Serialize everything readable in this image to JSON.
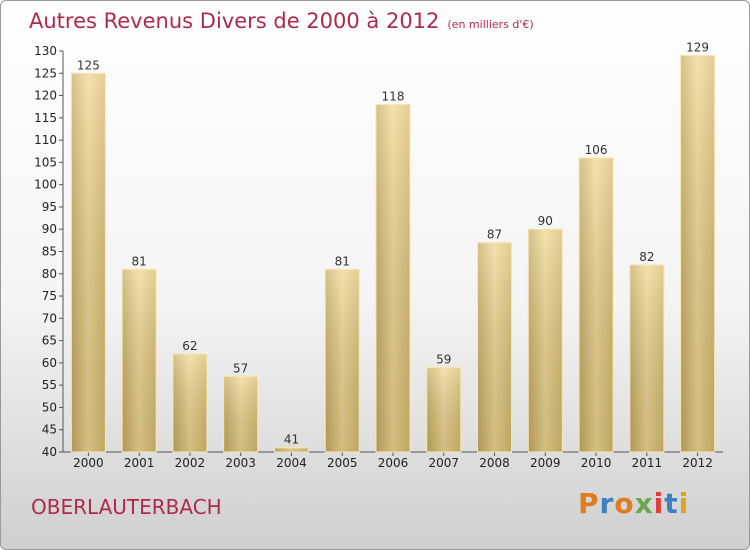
{
  "chart_data": {
    "type": "bar",
    "title": "Autres Revenus Divers de 2000 à 2012",
    "subtitle": "(en milliers d'€)",
    "categories": [
      "2000",
      "2001",
      "2002",
      "2003",
      "2004",
      "2005",
      "2006",
      "2007",
      "2008",
      "2009",
      "2010",
      "2011",
      "2012"
    ],
    "values": [
      125,
      81,
      62,
      57,
      41,
      81,
      118,
      59,
      87,
      90,
      106,
      82,
      129
    ],
    "ylim": [
      40,
      130
    ],
    "yticks": [
      40,
      45,
      50,
      55,
      60,
      65,
      70,
      75,
      80,
      85,
      90,
      95,
      100,
      105,
      110,
      115,
      120,
      125,
      130
    ],
    "xlabel": "",
    "ylabel": "",
    "grid": false,
    "bar_color": "#e4c97d",
    "title_color": "#b0294d"
  },
  "footer": {
    "commune": "OBERLAUTERBACH",
    "logo_text": "Proxiti",
    "logo_colors": [
      "#e07b1f",
      "#3d7fc4",
      "#e07b1f",
      "#6aa84f",
      "#e03c3c",
      "#3d7fc4",
      "#e0a21f"
    ]
  }
}
